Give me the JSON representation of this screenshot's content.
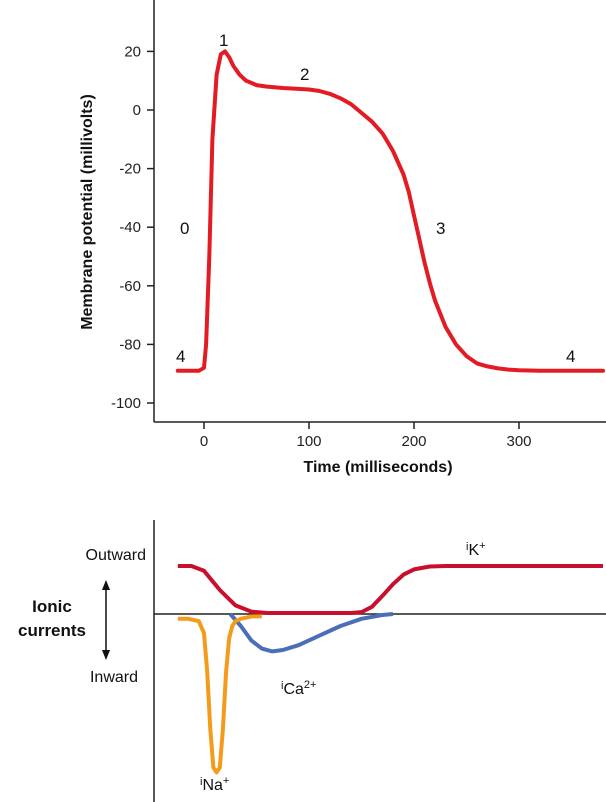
{
  "chart_data": [
    {
      "type": "line",
      "title": "",
      "xlabel": "Time (milliseconds)",
      "ylabel": "Membrane potential (millivolts)",
      "xlim": [
        -30,
        380
      ],
      "ylim": [
        -106,
        28
      ],
      "xticks": [
        0,
        100,
        200,
        300
      ],
      "yticks": [
        20,
        0,
        -20,
        -40,
        -60,
        -80,
        -100
      ],
      "series": [
        {
          "color": "#e31b23",
          "x": [
            -25,
            -5,
            0,
            2,
            5,
            8,
            12,
            16,
            20,
            24,
            28,
            34,
            40,
            50,
            60,
            75,
            90,
            100,
            110,
            120,
            130,
            140,
            150,
            160,
            170,
            180,
            190,
            195,
            200,
            205,
            210,
            215,
            220,
            230,
            240,
            250,
            260,
            270,
            280,
            290,
            300,
            320,
            340,
            360,
            380
          ],
          "y": [
            -89,
            -89,
            -88,
            -80,
            -50,
            -10,
            12,
            19,
            20,
            18,
            15,
            12,
            10,
            8.5,
            8,
            7.5,
            7.2,
            7,
            6.5,
            5.5,
            4,
            2,
            -1,
            -4,
            -8,
            -14,
            -22,
            -28,
            -36,
            -44,
            -52,
            -59,
            -65,
            -74,
            -80,
            -84,
            -86.5,
            -87.5,
            -88.2,
            -88.6,
            -88.8,
            -89,
            -89,
            -89,
            -89
          ]
        }
      ],
      "annotations": [
        {
          "text": "0",
          "x": -16,
          "y": -40
        },
        {
          "text": "1",
          "x": 19,
          "y": 24
        },
        {
          "text": "2",
          "x": 101,
          "y": 12
        },
        {
          "text": "3",
          "x": 235,
          "y": -40
        },
        {
          "text": "4",
          "x": -20,
          "y": -84
        },
        {
          "text": "4",
          "x": 353,
          "y": -84
        }
      ]
    },
    {
      "type": "line",
      "title": "",
      "xlabel": "",
      "ylabel": "Ionic currents",
      "ylabel_above": "Outward",
      "ylabel_below": "Inward",
      "series": [
        {
          "name": "iK+",
          "color": "#c8102e",
          "x": [
            -25,
            -12,
            0,
            15,
            30,
            45,
            60,
            80,
            100,
            120,
            140,
            150,
            160,
            170,
            180,
            190,
            200,
            215,
            230,
            260,
            300,
            340,
            380
          ],
          "y": [
            1.0,
            1.0,
            0.9,
            0.5,
            0.18,
            0.05,
            0.02,
            0.02,
            0.02,
            0.02,
            0.02,
            0.04,
            0.15,
            0.38,
            0.62,
            0.82,
            0.93,
            0.99,
            1.0,
            1.0,
            1.0,
            1.0,
            1.0
          ]
        },
        {
          "name": "iCa2+",
          "color": "#4a6fb7",
          "x": [
            25,
            35,
            45,
            55,
            65,
            75,
            90,
            110,
            130,
            150,
            170,
            180
          ],
          "y": [
            0.0,
            -0.25,
            -0.55,
            -0.72,
            -0.78,
            -0.75,
            -0.65,
            -0.45,
            -0.25,
            -0.1,
            -0.02,
            0.0
          ]
        },
        {
          "name": "iNa+",
          "color": "#f39c1b",
          "x": [
            -25,
            -15,
            -5,
            0,
            3,
            6,
            9,
            12,
            15,
            18,
            21,
            24,
            27,
            30,
            35,
            45,
            55
          ],
          "y": [
            -0.1,
            -0.1,
            -0.15,
            -0.4,
            -1.2,
            -2.4,
            -3.2,
            -3.3,
            -3.2,
            -2.4,
            -1.2,
            -0.5,
            -0.25,
            -0.15,
            -0.1,
            -0.05,
            -0.05
          ]
        }
      ]
    }
  ],
  "labels": {
    "top_xlabel": "Time (milliseconds)",
    "top_ylabel": "Membrane potential (millivolts)",
    "phase0": "0",
    "phase1": "1",
    "phase2": "2",
    "phase3": "3",
    "phase4a": "4",
    "phase4b": "4",
    "outward": "Outward",
    "inward": "Inward",
    "ionic_line1": "Ionic",
    "ionic_line2": "currents",
    "iK_i": "i",
    "iK_main": "K",
    "iK_sup": "+",
    "iCa_i": "i",
    "iCa_main": "Ca",
    "iCa_sup": "2+",
    "iNa_i": "i",
    "iNa_main": "Na",
    "iNa_sup": "+"
  }
}
